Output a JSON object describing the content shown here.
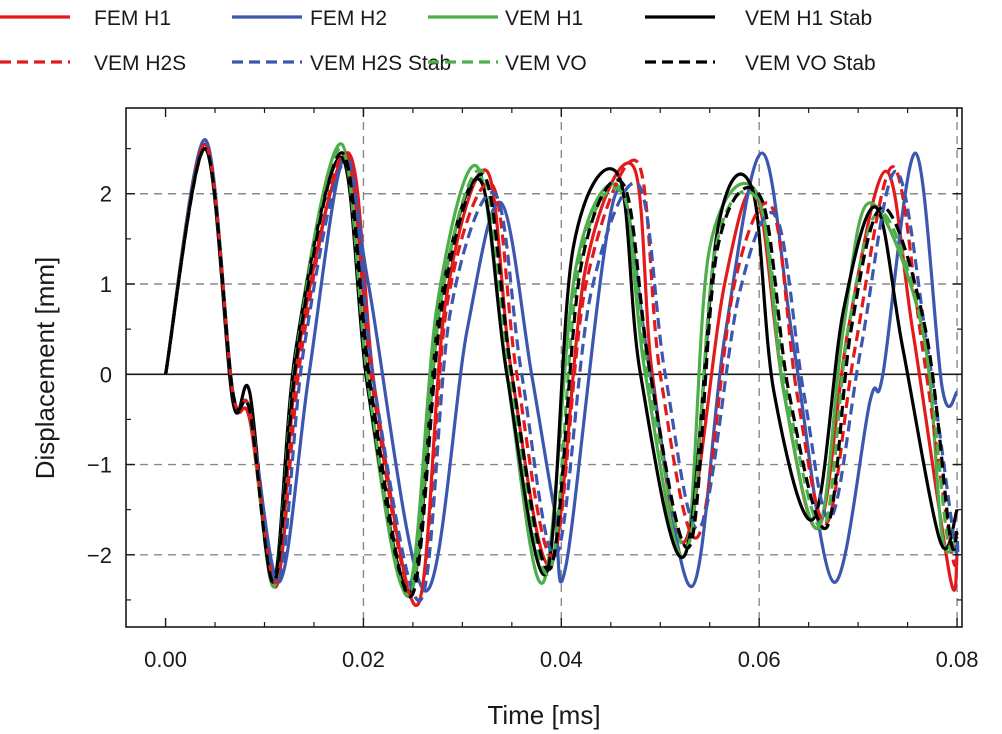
{
  "chart_data": {
    "type": "line",
    "title": "",
    "xlabel": "Time [ms]",
    "ylabel": "Displacement [mm]",
    "xlim": [
      -0.004,
      0.0805
    ],
    "ylim": [
      -2.8,
      2.95
    ],
    "xticks": [
      0.0,
      0.02,
      0.04,
      0.06,
      0.08
    ],
    "xtick_labels": [
      "0.00",
      "0.02",
      "0.04",
      "0.06",
      "0.08"
    ],
    "yticks": [
      -2,
      -1,
      0,
      1,
      2
    ],
    "ytick_labels": [
      "−2",
      "−1",
      "0",
      "1",
      "2"
    ],
    "grid": "dashed at major ticks",
    "zero_line": true,
    "legend_position": "top, outside plot",
    "series": [
      {
        "name": "FEM H1",
        "color": "#e31a1c",
        "dash": "solid",
        "x": [
          0,
          0.004,
          0.0068,
          0.0085,
          0.0112,
          0.0135,
          0.0185,
          0.0212,
          0.0255,
          0.0283,
          0.0325,
          0.035,
          0.039,
          0.0425,
          0.0473,
          0.0492,
          0.0525,
          0.0565,
          0.0597,
          0.0625,
          0.066,
          0.069,
          0.0728,
          0.0755,
          0.0793,
          0.08
        ],
        "y": [
          0,
          2.55,
          -0.2,
          -0.5,
          -2.35,
          0.3,
          2.45,
          -0.2,
          -2.55,
          0.8,
          2.25,
          0,
          -2.1,
          1.2,
          2.3,
          0,
          -1.85,
          1.0,
          2.0,
          -0.2,
          -1.7,
          0.5,
          2.25,
          0.5,
          -2.25,
          -2.0
        ]
      },
      {
        "name": "FEM H2",
        "color": "#3b57b0",
        "dash": "solid",
        "x": [
          0,
          0.004,
          0.0068,
          0.0085,
          0.0115,
          0.0145,
          0.018,
          0.0205,
          0.0262,
          0.0305,
          0.0339,
          0.037,
          0.0393,
          0.0405,
          0.0455,
          0.049,
          0.0532,
          0.0565,
          0.0603,
          0.0635,
          0.0675,
          0.0712,
          0.0725,
          0.0758,
          0.0785,
          0.08
        ],
        "y": [
          0,
          2.6,
          -0.2,
          -0.4,
          -2.3,
          0.0,
          2.4,
          1.0,
          -2.4,
          0.5,
          1.9,
          0,
          -1.5,
          -2.1,
          2.0,
          0,
          -2.35,
          0.4,
          2.45,
          0.3,
          -2.3,
          -0.3,
          0.0,
          2.45,
          -0.15,
          -0.2
        ]
      },
      {
        "name": "VEM H1",
        "color": "#4daf4a",
        "dash": "solid",
        "x": [
          0,
          0.004,
          0.0068,
          0.0085,
          0.011,
          0.0132,
          0.0178,
          0.0205,
          0.0245,
          0.0275,
          0.0315,
          0.0345,
          0.0382,
          0.0415,
          0.046,
          0.0485,
          0.0525,
          0.055,
          0.0598,
          0.0625,
          0.066,
          0.0685,
          0.0712,
          0.0765,
          0.0785,
          0.08
        ],
        "y": [
          0,
          2.5,
          -0.2,
          -0.4,
          -2.35,
          0.3,
          2.55,
          -0.2,
          -2.4,
          0.8,
          2.3,
          0,
          -2.3,
          1.2,
          2.05,
          0,
          -2.0,
          1.4,
          2.0,
          -0.2,
          -1.7,
          0.5,
          1.9,
          0.5,
          -1.8,
          -1.8
        ]
      },
      {
        "name": "VEM H1 Stab",
        "color": "#000000",
        "dash": "solid",
        "x": [
          0,
          0.004,
          0.0068,
          0.0085,
          0.0109,
          0.0132,
          0.0178,
          0.0205,
          0.0248,
          0.0278,
          0.0318,
          0.0345,
          0.0385,
          0.0412,
          0.0458,
          0.048,
          0.0525,
          0.0558,
          0.0593,
          0.0615,
          0.0655,
          0.0685,
          0.0718,
          0.0745,
          0.0783,
          0.08
        ],
        "y": [
          0,
          2.5,
          -0.3,
          -0.2,
          -2.3,
          0.3,
          2.4,
          -0.2,
          -2.4,
          0.8,
          2.15,
          0,
          -2.2,
          1.4,
          2.2,
          0,
          -2.0,
          1.6,
          2.05,
          -0.2,
          -1.6,
          0.7,
          1.85,
          0.3,
          -1.85,
          -1.5
        ]
      },
      {
        "name": "VEM H2S",
        "color": "#e31a1c",
        "dash": "dashed",
        "x": [
          0,
          0.004,
          0.0068,
          0.0085,
          0.0112,
          0.0138,
          0.0182,
          0.021,
          0.0255,
          0.0285,
          0.033,
          0.0355,
          0.0392,
          0.0425,
          0.0477,
          0.05,
          0.0538,
          0.0575,
          0.0613,
          0.0638,
          0.0668,
          0.0697,
          0.0735,
          0.0765,
          0.0795,
          0.08
        ],
        "y": [
          0,
          2.55,
          -0.2,
          -0.4,
          -2.3,
          0.3,
          2.45,
          -0.2,
          -2.55,
          0.8,
          2.1,
          0,
          -2.0,
          1.0,
          2.35,
          0,
          -1.8,
          1.0,
          1.85,
          -0.2,
          -1.65,
          0.3,
          2.3,
          0.3,
          -2.0,
          -1.8
        ]
      },
      {
        "name": "VEM H2S Stab",
        "color": "#3b57b0",
        "dash": "dashed",
        "x": [
          0,
          0.004,
          0.0068,
          0.0085,
          0.0114,
          0.014,
          0.0183,
          0.0212,
          0.0258,
          0.0288,
          0.0333,
          0.036,
          0.0395,
          0.043,
          0.0478,
          0.0505,
          0.054,
          0.058,
          0.0617,
          0.0645,
          0.0672,
          0.0703,
          0.0738,
          0.077,
          0.0798,
          0.08
        ],
        "y": [
          0,
          2.5,
          -0.2,
          -0.4,
          -2.3,
          0.3,
          2.35,
          -0.2,
          -2.5,
          0.7,
          2.0,
          0,
          -2.0,
          0.9,
          2.1,
          0,
          -1.7,
          0.9,
          1.75,
          -0.2,
          -1.6,
          0.3,
          2.25,
          0.3,
          -1.9,
          -1.75
        ]
      },
      {
        "name": "VEM VO",
        "color": "#4daf4a",
        "dash": "dashed",
        "x": [
          0,
          0.004,
          0.0068,
          0.0085,
          0.011,
          0.0133,
          0.0178,
          0.0206,
          0.0247,
          0.0278,
          0.032,
          0.0348,
          0.0388,
          0.0418,
          0.0462,
          0.0488,
          0.0528,
          0.0556,
          0.06,
          0.0628,
          0.0665,
          0.069,
          0.0722,
          0.0765,
          0.079,
          0.08
        ],
        "y": [
          0,
          2.5,
          -0.2,
          -0.4,
          -2.3,
          0.3,
          2.5,
          -0.2,
          -2.45,
          0.8,
          2.25,
          0,
          -2.2,
          1.2,
          2.0,
          0,
          -1.9,
          1.4,
          1.9,
          -0.2,
          -1.7,
          0.5,
          1.8,
          0.5,
          -1.8,
          -1.75
        ]
      },
      {
        "name": "VEM VO Stab",
        "color": "#000000",
        "dash": "dashed",
        "x": [
          0,
          0.004,
          0.0068,
          0.0085,
          0.011,
          0.0134,
          0.0179,
          0.0208,
          0.0249,
          0.028,
          0.0322,
          0.035,
          0.0389,
          0.042,
          0.0463,
          0.049,
          0.053,
          0.0558,
          0.0602,
          0.063,
          0.0668,
          0.0693,
          0.0725,
          0.0768,
          0.0793,
          0.08
        ],
        "y": [
          0,
          2.5,
          -0.2,
          -0.4,
          -2.3,
          0.3,
          2.45,
          -0.2,
          -2.45,
          0.8,
          2.2,
          0,
          -2.15,
          1.2,
          2.1,
          0,
          -1.9,
          1.4,
          1.95,
          -0.2,
          -1.7,
          0.5,
          1.85,
          0.5,
          -1.8,
          -1.7
        ]
      }
    ]
  }
}
